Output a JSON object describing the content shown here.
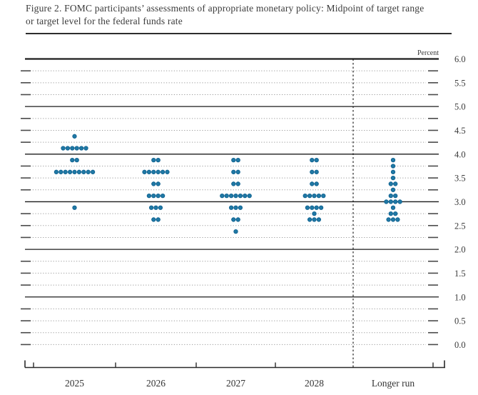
{
  "header": {
    "title_line1": "Figure 2. FOMC participants’ assessments of appropriate monetary policy: Midpoint of target range",
    "title_line2": "or target level for the federal funds rate"
  },
  "chart_data": {
    "type": "scatter",
    "title": "FOMC participants’ assessments of appropriate monetary policy: Midpoint of target range or target level for the federal funds rate",
    "unit_label": "Percent",
    "ylim": [
      0.0,
      6.0
    ],
    "grid_step": 0.25,
    "label_step": 0.5,
    "solid_gridlines": [
      6.0,
      5.0,
      4.0,
      3.0,
      2.0,
      1.0
    ],
    "y_tick_labels": [
      "6.0",
      "5.5",
      "5.0",
      "4.5",
      "4.0",
      "3.5",
      "3.0",
      "2.5",
      "2.0",
      "1.5",
      "1.0",
      "0.5",
      "0.0"
    ],
    "categories": [
      "2025",
      "2026",
      "2027",
      "2028",
      "Longer run"
    ],
    "separator_after_category": "2028",
    "legend_position": "none",
    "dot_color": "#2079a5",
    "dot_edge_color": "#0f6190",
    "series": [
      {
        "category": "2025",
        "dots": [
          {
            "rate": 4.375,
            "count": 1
          },
          {
            "rate": 4.125,
            "count": 6
          },
          {
            "rate": 3.875,
            "count": 2
          },
          {
            "rate": 3.625,
            "count": 9
          },
          {
            "rate": 2.875,
            "count": 1
          }
        ]
      },
      {
        "category": "2026",
        "dots": [
          {
            "rate": 3.875,
            "count": 2
          },
          {
            "rate": 3.625,
            "count": 6
          },
          {
            "rate": 3.375,
            "count": 2
          },
          {
            "rate": 3.125,
            "count": 4
          },
          {
            "rate": 2.875,
            "count": 3
          },
          {
            "rate": 2.625,
            "count": 2
          }
        ]
      },
      {
        "category": "2027",
        "dots": [
          {
            "rate": 3.875,
            "count": 2
          },
          {
            "rate": 3.625,
            "count": 2
          },
          {
            "rate": 3.375,
            "count": 2
          },
          {
            "rate": 3.125,
            "count": 7
          },
          {
            "rate": 2.875,
            "count": 3
          },
          {
            "rate": 2.625,
            "count": 2
          },
          {
            "rate": 2.375,
            "count": 1
          }
        ]
      },
      {
        "category": "2028",
        "dots": [
          {
            "rate": 3.875,
            "count": 2
          },
          {
            "rate": 3.625,
            "count": 2
          },
          {
            "rate": 3.375,
            "count": 2
          },
          {
            "rate": 3.125,
            "count": 5
          },
          {
            "rate": 2.875,
            "count": 4
          },
          {
            "rate": 2.75,
            "count": 1
          },
          {
            "rate": 2.625,
            "count": 3
          }
        ]
      },
      {
        "category": "Longer run",
        "dots": [
          {
            "rate": 3.875,
            "count": 1
          },
          {
            "rate": 3.75,
            "count": 1
          },
          {
            "rate": 3.625,
            "count": 1
          },
          {
            "rate": 3.5,
            "count": 1
          },
          {
            "rate": 3.375,
            "count": 2
          },
          {
            "rate": 3.25,
            "count": 1
          },
          {
            "rate": 3.125,
            "count": 2
          },
          {
            "rate": 3.0,
            "count": 4
          },
          {
            "rate": 2.875,
            "count": 1
          },
          {
            "rate": 2.75,
            "count": 2
          },
          {
            "rate": 2.625,
            "count": 3
          }
        ]
      }
    ]
  }
}
